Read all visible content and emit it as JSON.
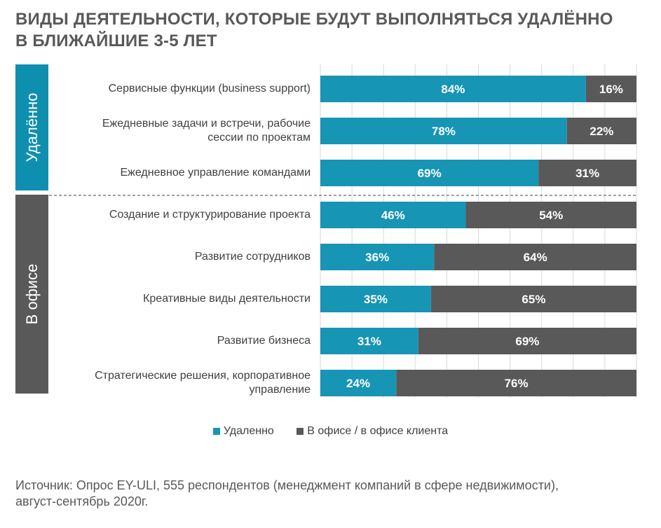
{
  "title_lines": [
    "ВИДЫ ДЕЯТЕЛЬНОСТИ, КОТОРЫЕ БУДУТ ВЫПОЛНЯТЬСЯ УДАЛЁННО",
    "В БЛИЖАЙШИЕ 3-5 ЛЕТ"
  ],
  "groups": [
    {
      "label": "Удалённо",
      "color": "#0f8fb0"
    },
    {
      "label": "В офисе",
      "color": "#595959"
    }
  ],
  "colors": {
    "remote": "#1795b5",
    "office": "#595959",
    "grid": "#d9d9d9",
    "divider": "#404040"
  },
  "legend": {
    "remote": "Удаленно",
    "office": "В офисе / в офисе клиента"
  },
  "source_lines": [
    "Источник: Опрос EY-ULI, 555 респондентов (менеджмент компаний в сфере недвижимости),",
    "август-сентябрь 2020г."
  ],
  "chart_data": {
    "type": "bar",
    "orientation": "horizontal",
    "stacked": true,
    "percent": true,
    "title": "ВИДЫ ДЕЯТЕЛЬНОСТИ, КОТОРЫЕ БУДУТ ВЫПОЛНЯТЬСЯ УДАЛЁННО В БЛИЖАЙШИЕ 3-5 ЛЕТ",
    "categories": [
      [
        "Сервисные функции (business support)"
      ],
      [
        "Ежедневные задачи и встречи, рабочие",
        "сессии по проектам"
      ],
      [
        "Ежедневное управление командами"
      ],
      [
        "Создание и структурирование проекта"
      ],
      [
        "Развитие сотрудников"
      ],
      [
        "Креативные виды деятельности"
      ],
      [
        "Развитие бизнеса"
      ],
      [
        "Стратегические решения, корпоративное",
        "управление"
      ]
    ],
    "category_groups": [
      "Удалённо",
      "Удалённо",
      "Удалённо",
      "В офисе",
      "В офисе",
      "В офисе",
      "В офисе",
      "В офисе"
    ],
    "series": [
      {
        "name": "Удаленно",
        "values": [
          84,
          78,
          69,
          46,
          36,
          35,
          31,
          24
        ]
      },
      {
        "name": "В офисе / в офисе клиента",
        "values": [
          16,
          22,
          31,
          54,
          64,
          65,
          69,
          76
        ]
      }
    ],
    "data_labels": [
      [
        "84%",
        "78%",
        "69%",
        "46%",
        "36%",
        "35%",
        "31%",
        "24%"
      ],
      [
        "16%",
        "22%",
        "31%",
        "54%",
        "64%",
        "65%",
        "69%",
        "76%"
      ]
    ],
    "xlim": [
      0,
      100
    ],
    "grid": true,
    "legend_position": "bottom"
  }
}
